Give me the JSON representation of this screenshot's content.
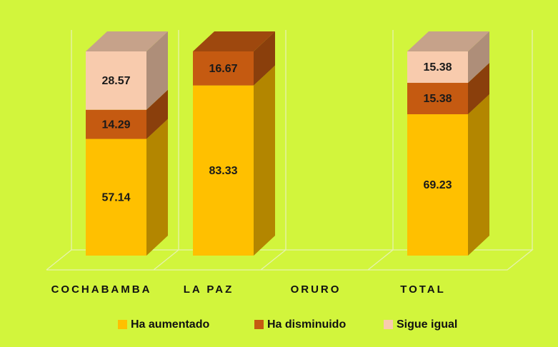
{
  "chart_data": {
    "type": "bar3d_stacked",
    "categories": [
      "COCHABAMBA",
      "LA PAZ",
      "ORURO",
      "TOTAL"
    ],
    "series": [
      {
        "name": "Ha aumentado",
        "color": "#ffc000",
        "values": [
          57.14,
          83.33,
          null,
          69.23
        ]
      },
      {
        "name": "Ha disminuido",
        "color": "#c55a11",
        "values": [
          14.29,
          16.67,
          null,
          15.38
        ]
      },
      {
        "name": "Sigue igual",
        "color": "#f8cbad",
        "values": [
          28.57,
          null,
          null,
          15.38
        ]
      }
    ],
    "background": "#d2f53c",
    "legend": "bottom"
  }
}
